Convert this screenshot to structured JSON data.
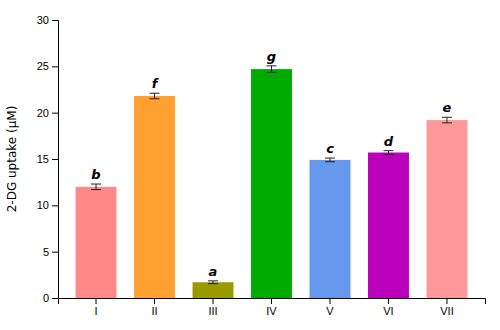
{
  "chart_data": {
    "type": "bar",
    "categories": [
      "I",
      "II",
      "III",
      "IV",
      "V",
      "VI",
      "VII"
    ],
    "values": [
      12.0,
      21.8,
      1.7,
      24.7,
      14.9,
      15.7,
      19.2
    ],
    "errors": [
      0.3,
      0.3,
      0.15,
      0.35,
      0.2,
      0.2,
      0.3
    ],
    "colors": [
      "#FF8888",
      "#FFA030",
      "#999900",
      "#00AA00",
      "#6699EE",
      "#BB00BB",
      "#FF9999"
    ],
    "annotations": [
      "b",
      "f",
      "a",
      "g",
      "c",
      "d",
      "e"
    ],
    "ylabel": "2-DG uptake (μM)",
    "ylim": [
      0,
      30
    ],
    "yticks": [
      0,
      5,
      10,
      15,
      20,
      25,
      30
    ]
  }
}
